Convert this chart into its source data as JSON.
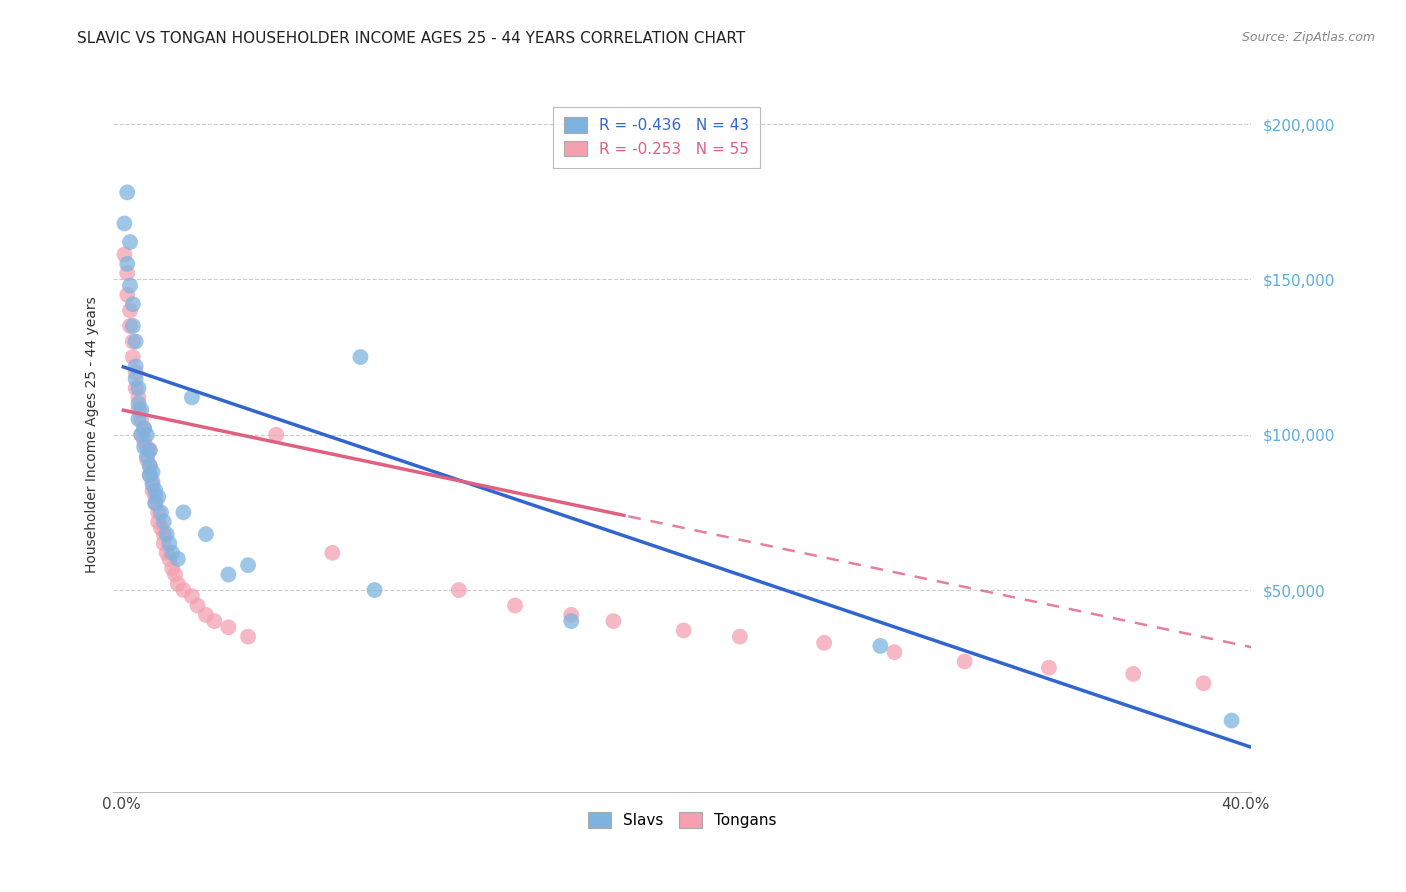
{
  "title": "SLAVIC VS TONGAN HOUSEHOLDER INCOME AGES 25 - 44 YEARS CORRELATION CHART",
  "source": "Source: ZipAtlas.com",
  "ylabel": "Householder Income Ages 25 - 44 years",
  "slavs_color": "#7eb3e0",
  "tongans_color": "#f4a0b0",
  "slavs_line_color": "#3366cc",
  "tongans_line_color": "#e06080",
  "slavs_R": -0.436,
  "slavs_N": 43,
  "tongans_R": -0.253,
  "tongans_N": 55,
  "slavs_line_intercept": 122000,
  "slavs_line_slope": -305000,
  "tongans_line_intercept": 108000,
  "tongans_line_slope": -190000,
  "tongans_dash_cutoff": 0.18,
  "slavs_x": [
    0.001,
    0.002,
    0.002,
    0.003,
    0.003,
    0.004,
    0.004,
    0.005,
    0.005,
    0.005,
    0.006,
    0.006,
    0.006,
    0.007,
    0.007,
    0.008,
    0.008,
    0.009,
    0.009,
    0.01,
    0.01,
    0.01,
    0.011,
    0.011,
    0.012,
    0.012,
    0.013,
    0.014,
    0.015,
    0.016,
    0.017,
    0.018,
    0.02,
    0.022,
    0.025,
    0.03,
    0.038,
    0.045,
    0.085,
    0.09,
    0.16,
    0.27,
    0.395
  ],
  "slavs_y": [
    168000,
    178000,
    155000,
    162000,
    148000,
    142000,
    135000,
    130000,
    122000,
    118000,
    115000,
    110000,
    105000,
    108000,
    100000,
    102000,
    96000,
    100000,
    93000,
    95000,
    90000,
    87000,
    88000,
    84000,
    82000,
    78000,
    80000,
    75000,
    72000,
    68000,
    65000,
    62000,
    60000,
    75000,
    112000,
    68000,
    55000,
    58000,
    125000,
    50000,
    40000,
    32000,
    8000
  ],
  "tongans_x": [
    0.001,
    0.002,
    0.002,
    0.003,
    0.003,
    0.004,
    0.004,
    0.005,
    0.005,
    0.006,
    0.006,
    0.007,
    0.007,
    0.008,
    0.008,
    0.009,
    0.009,
    0.01,
    0.01,
    0.01,
    0.011,
    0.011,
    0.012,
    0.012,
    0.013,
    0.013,
    0.014,
    0.015,
    0.015,
    0.016,
    0.017,
    0.018,
    0.019,
    0.02,
    0.022,
    0.025,
    0.027,
    0.03,
    0.033,
    0.038,
    0.045,
    0.055,
    0.075,
    0.12,
    0.14,
    0.16,
    0.175,
    0.2,
    0.22,
    0.25,
    0.275,
    0.3,
    0.33,
    0.36,
    0.385
  ],
  "tongans_y": [
    158000,
    152000,
    145000,
    140000,
    135000,
    130000,
    125000,
    120000,
    115000,
    112000,
    108000,
    105000,
    100000,
    102000,
    98000,
    96000,
    92000,
    95000,
    90000,
    87000,
    85000,
    82000,
    80000,
    78000,
    75000,
    72000,
    70000,
    68000,
    65000,
    62000,
    60000,
    57000,
    55000,
    52000,
    50000,
    48000,
    45000,
    42000,
    40000,
    38000,
    35000,
    100000,
    62000,
    50000,
    45000,
    42000,
    40000,
    37000,
    35000,
    33000,
    30000,
    27000,
    25000,
    23000,
    20000
  ],
  "background_color": "#ffffff",
  "grid_color": "#cccccc",
  "right_axis_color": "#5badde",
  "xlim_min": -0.003,
  "xlim_max": 0.402,
  "ylim_min": -15000,
  "ylim_max": 215000
}
